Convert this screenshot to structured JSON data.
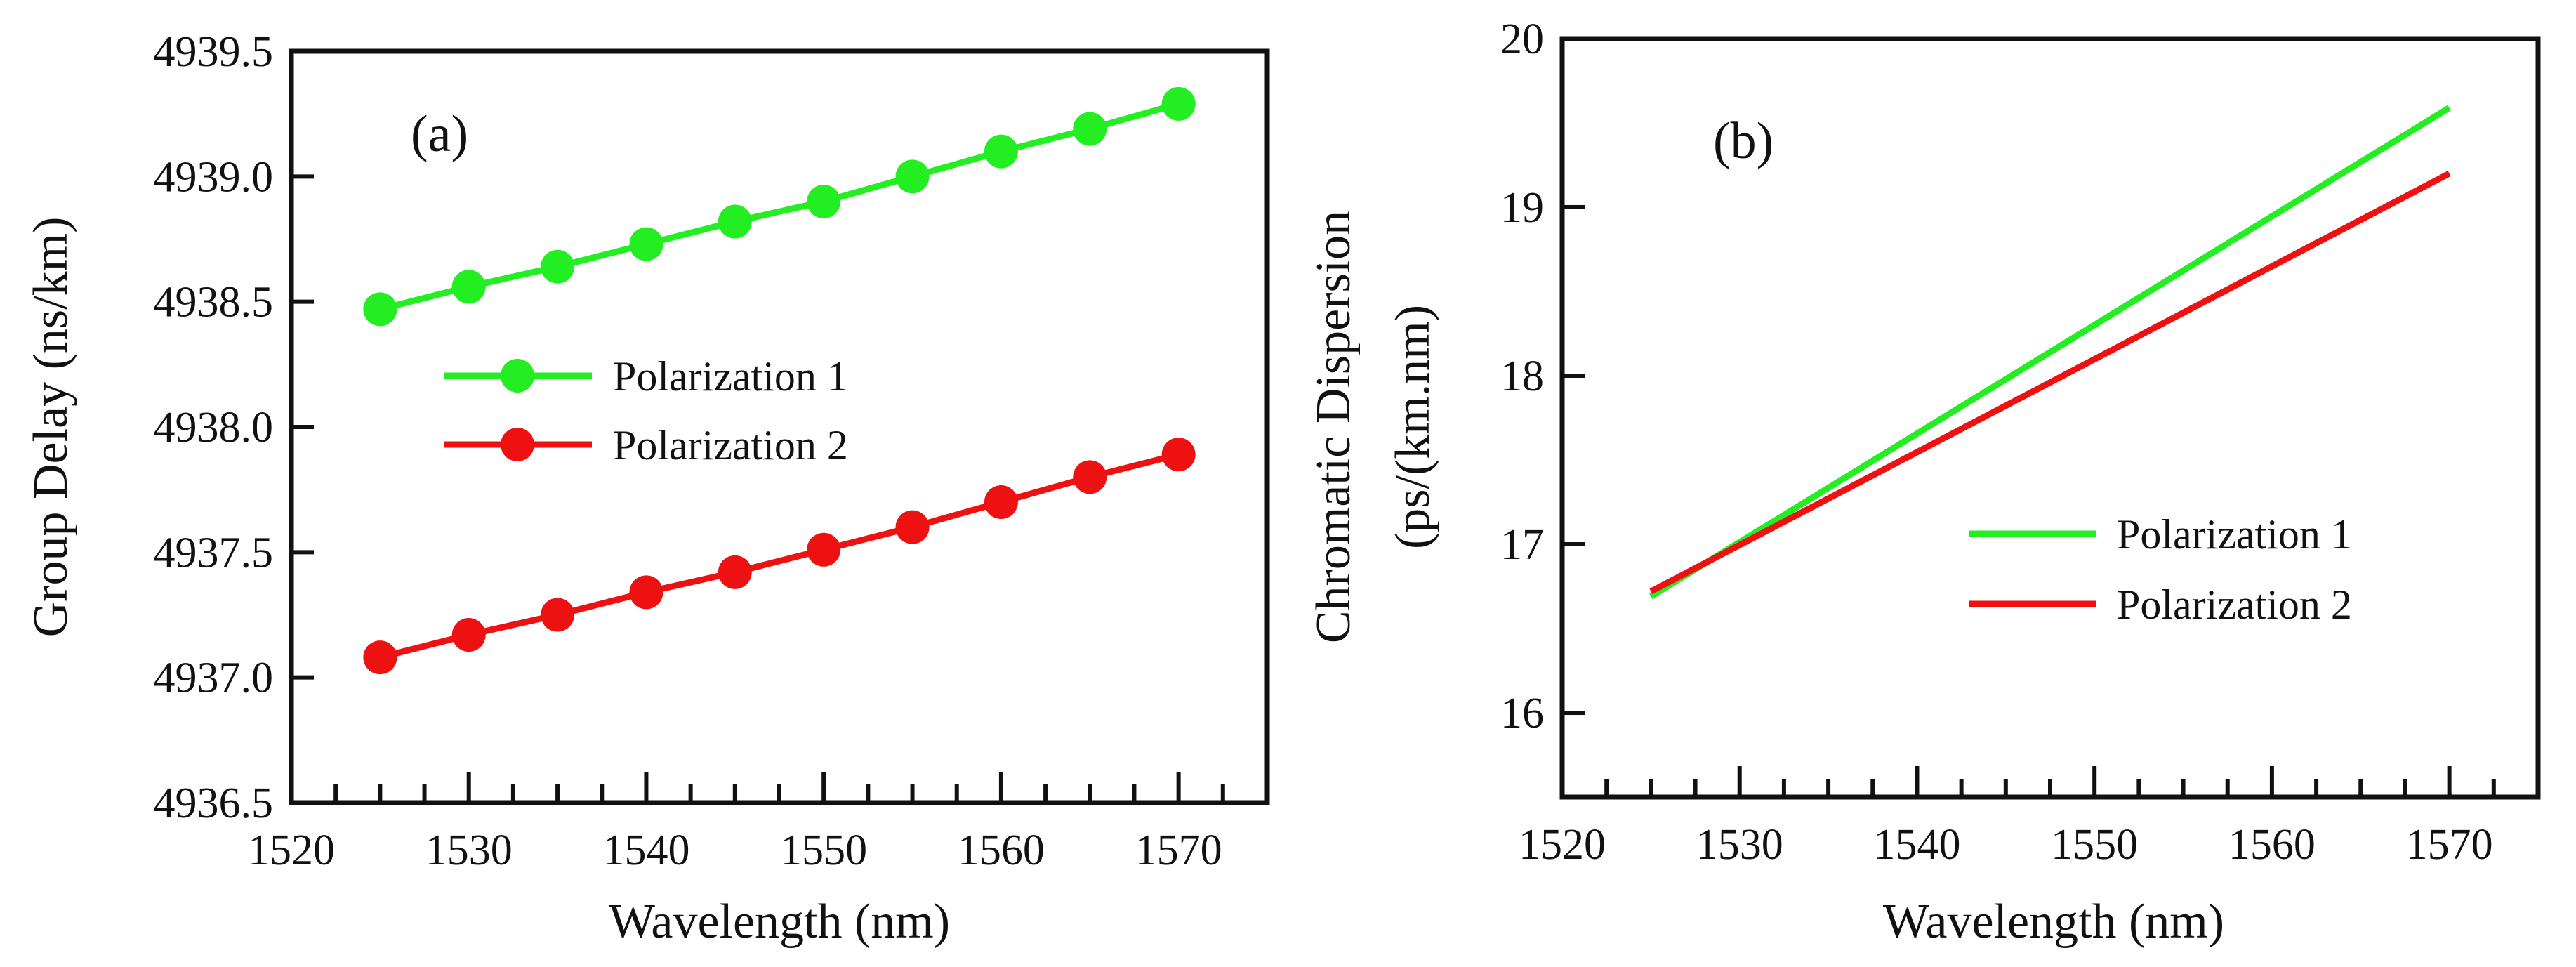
{
  "chart_data": [
    {
      "panel": "(a)",
      "type": "line",
      "markers": true,
      "xlabel": "Wavelength (nm)",
      "ylabel": "Group Delay (ns/km)",
      "xlim": [
        1520,
        1575
      ],
      "ylim": [
        4936.5,
        4939.5
      ],
      "xticks": [
        1520,
        1530,
        1540,
        1550,
        1560,
        1570
      ],
      "xtick_labels": [
        "1520",
        "1530",
        "1540",
        "1550",
        "1560",
        "1570"
      ],
      "yticks": [
        4936.5,
        4937.0,
        4937.5,
        4938.0,
        4938.5,
        4939.0,
        4939.5
      ],
      "ytick_labels": [
        "4936.5",
        "4937.0",
        "4937.5",
        "4938.0",
        "4938.5",
        "4939.0",
        "4939.5"
      ],
      "legend_position": "center-left",
      "x": [
        1525,
        1530,
        1535,
        1540,
        1545,
        1550,
        1555,
        1560,
        1565,
        1570
      ],
      "series": [
        {
          "name": "Polarization 1",
          "color": "#22ee22",
          "values": [
            4938.47,
            4938.56,
            4938.64,
            4938.73,
            4938.82,
            4938.9,
            4939.0,
            4939.1,
            4939.19,
            4939.29
          ]
        },
        {
          "name": "Polarization 2",
          "color": "#ee1111",
          "values": [
            4937.08,
            4937.17,
            4937.25,
            4937.34,
            4937.42,
            4937.51,
            4937.6,
            4937.7,
            4937.8,
            4937.89
          ]
        }
      ]
    },
    {
      "panel": "(b)",
      "type": "line",
      "markers": false,
      "xlabel": "Wavelength (nm)",
      "ylabel_line1": "Chromatic Dispersion",
      "ylabel_line2": "(ps/(km.nm)",
      "xlim": [
        1520,
        1575
      ],
      "ylim": [
        15.5,
        20
      ],
      "xticks": [
        1520,
        1530,
        1540,
        1550,
        1560,
        1570
      ],
      "xtick_labels": [
        "1520",
        "1530",
        "1540",
        "1550",
        "1560",
        "1570"
      ],
      "yticks": [
        16,
        17,
        18,
        19,
        20
      ],
      "ytick_labels": [
        "16",
        "17",
        "18",
        "19",
        "20"
      ],
      "legend_position": "bottom-right",
      "x": [
        1525,
        1570
      ],
      "series": [
        {
          "name": "Polarization 1",
          "color": "#22ee22",
          "values": [
            16.69,
            19.59
          ]
        },
        {
          "name": "Polarization 2",
          "color": "#ee1111",
          "values": [
            16.72,
            19.2
          ]
        }
      ]
    }
  ]
}
